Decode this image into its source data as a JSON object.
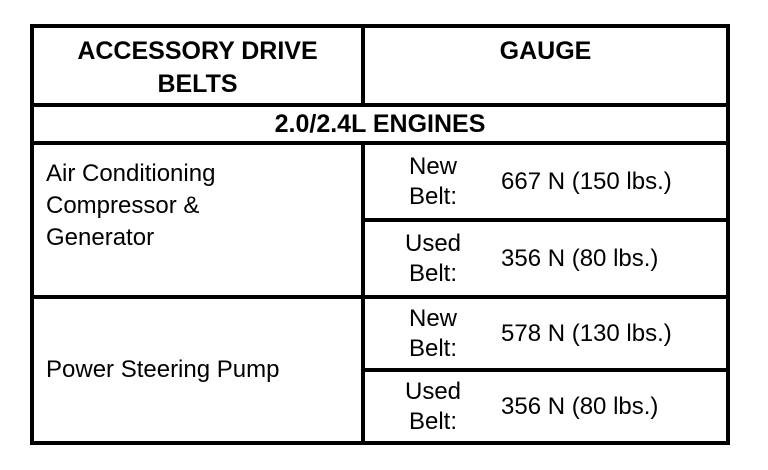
{
  "colors": {
    "background": "#ffffff",
    "border": "#000000",
    "text": "#000000"
  },
  "table": {
    "header": {
      "belts_label": "ACCESSORY DRIVE BELTS",
      "gauge_label": "GAUGE"
    },
    "engine_section_title": "2.0/2.4L ENGINES",
    "sections": [
      {
        "component": "Air Conditioning Compressor & Generator",
        "measurements": [
          {
            "belt_type": "New Belt:",
            "value": "667 N (150 lbs.)"
          },
          {
            "belt_type": "Used Belt:",
            "value": "356 N (80 lbs.)"
          }
        ]
      },
      {
        "component": "Power Steering Pump",
        "measurements": [
          {
            "belt_type": "New Belt:",
            "value": "578 N (130 lbs.)"
          },
          {
            "belt_type": "Used Belt:",
            "value": "356 N (80 lbs.)"
          }
        ]
      }
    ]
  }
}
